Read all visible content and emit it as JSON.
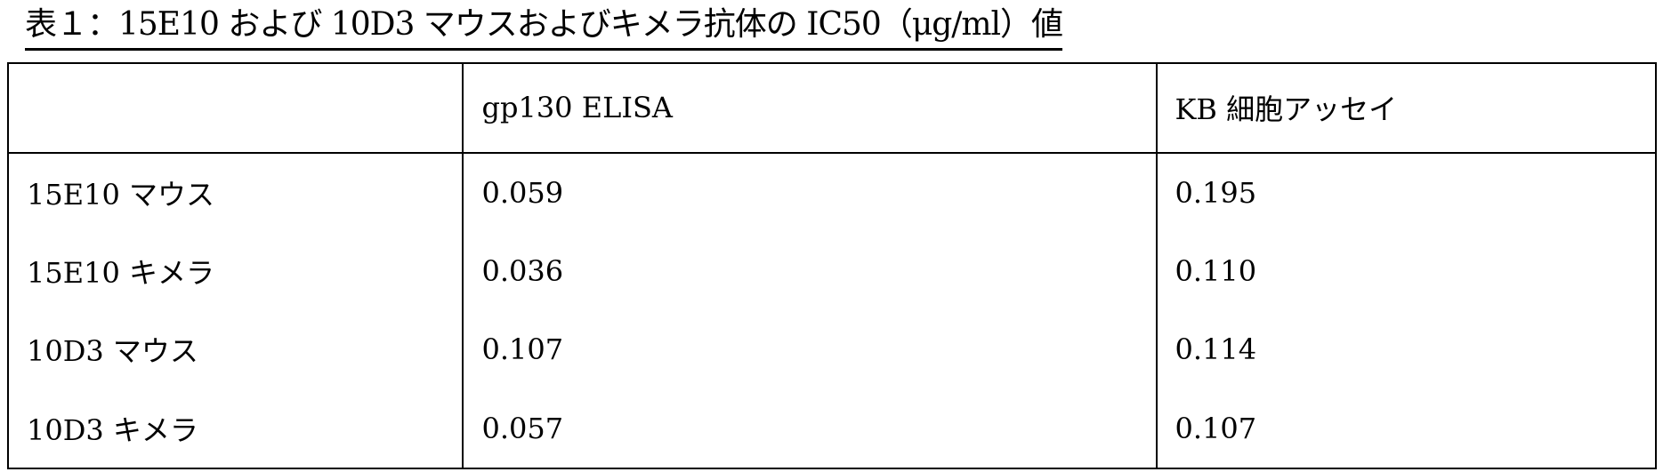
{
  "title": "表１：15E10 および 10D3 マウスおよびキメラ抗体の IC50（μg/ml）値",
  "table": {
    "headers": [
      "",
      "gp130 ELISA",
      "KB 細胞アッセイ"
    ],
    "rows": [
      [
        "15E10 マウス",
        "0.059",
        "0.195"
      ],
      [
        "15E10 キメラ",
        "0.036",
        "0.110"
      ],
      [
        "10D3 マウス",
        "0.107",
        "0.114"
      ],
      [
        "10D3 キメラ",
        "0.057",
        "0.107"
      ]
    ]
  }
}
